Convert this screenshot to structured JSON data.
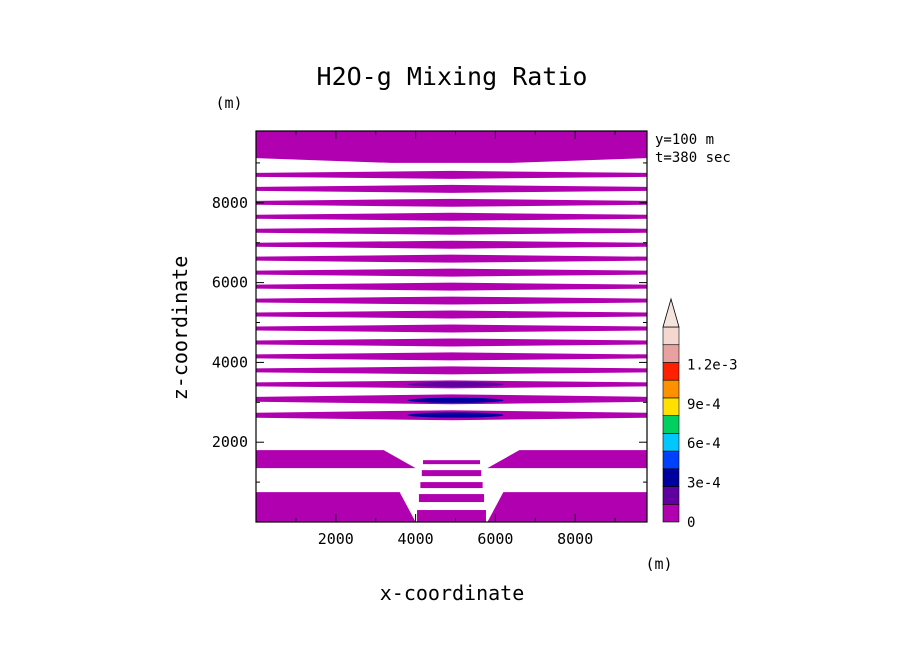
{
  "chart_data": {
    "type": "heatmap",
    "title": "H2O-g Mixing Ratio",
    "xlabel": "x-coordinate",
    "ylabel": "z-coordinate",
    "x_unit": "(m)",
    "y_unit": "(m)",
    "annotations": [
      "y=100 m",
      "t=380 sec"
    ],
    "xlim": [
      0,
      9800
    ],
    "ylim": [
      0,
      9800
    ],
    "xticks": [
      2000,
      4000,
      6000,
      8000
    ],
    "xtick_labels": [
      "2000",
      "4000",
      "6000",
      "8000"
    ],
    "yticks": [
      2000,
      4000,
      6000,
      8000
    ],
    "ytick_labels": [
      "2000",
      "4000",
      "6000",
      "8000"
    ],
    "colorbar": {
      "levels": [
        0,
        0.00015,
        0.0003,
        0.00045,
        0.0006,
        0.00075,
        0.0009,
        0.00105,
        0.0012,
        0.00135
      ],
      "colors": [
        "#b000b0",
        "#6000a0",
        "#0000a0",
        "#0040ff",
        "#00c8ff",
        "#00d060",
        "#ffe000",
        "#ff9000",
        "#ff2000",
        "#e8a0a0",
        "#f4d8d0"
      ],
      "labels": [
        "0",
        "3e-4",
        "6e-4",
        "9e-4",
        "1.2e-3"
      ],
      "label_values": [
        0,
        0.0003,
        0.0006,
        0.0009,
        0.0012
      ],
      "extend": "max"
    },
    "bands": [
      {
        "z": [
          9000,
          9800
        ],
        "value": 0.0
      },
      {
        "z": [
          8600,
          8800
        ],
        "value": 0.0
      },
      {
        "z": [
          8250,
          8450
        ],
        "value": 0.0
      },
      {
        "z": [
          7900,
          8100
        ],
        "value": 0.0
      },
      {
        "z": [
          7550,
          7750
        ],
        "value": 0.0
      },
      {
        "z": [
          7200,
          7400
        ],
        "value": 0.0
      },
      {
        "z": [
          6850,
          7050
        ],
        "value": 0.0
      },
      {
        "z": [
          6500,
          6700
        ],
        "value": 0.0
      },
      {
        "z": [
          6150,
          6350
        ],
        "value": 0.0
      },
      {
        "z": [
          5800,
          6000
        ],
        "value": 0.0
      },
      {
        "z": [
          5450,
          5650
        ],
        "value": 0.0
      },
      {
        "z": [
          5100,
          5300
        ],
        "value": 0.0
      },
      {
        "z": [
          4750,
          4950
        ],
        "value": 0.0
      },
      {
        "z": [
          4400,
          4600
        ],
        "value": 0.0
      },
      {
        "z": [
          4050,
          4250
        ],
        "value": 0.0
      },
      {
        "z": [
          3700,
          3900
        ],
        "value": 0.0
      },
      {
        "z": [
          3350,
          3550
        ],
        "value": 0.0
      },
      {
        "z": [
          2950,
          3200
        ],
        "value": 0.0
      },
      {
        "z": [
          2550,
          2800
        ],
        "value": 0.0
      },
      {
        "z": [
          1350,
          1800
        ],
        "value": 0.0
      },
      {
        "z": [
          0,
          750
        ],
        "value": 0.0
      }
    ],
    "anomalies": [
      {
        "x": 5000,
        "z": 3450,
        "value": 0.00015
      },
      {
        "x": 5000,
        "z": 3050,
        "value": 0.0003
      },
      {
        "x": 5000,
        "z": 2680,
        "value": 0.0003
      }
    ],
    "grid": false
  }
}
